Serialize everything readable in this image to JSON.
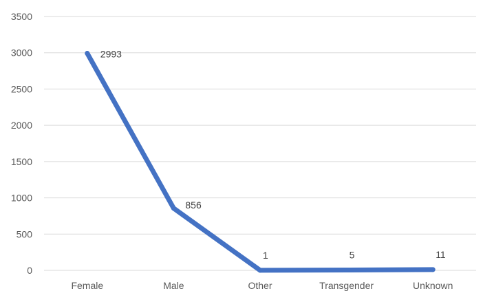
{
  "chart_data": {
    "type": "line",
    "categories": [
      "Female",
      "Male",
      "Other",
      "Transgender",
      "Unknown"
    ],
    "values": [
      2993,
      856,
      1,
      5,
      11
    ],
    "data_labels": [
      "2993",
      "856",
      "1",
      "5",
      "11"
    ],
    "title": "",
    "xlabel": "",
    "ylabel": "",
    "ylim": [
      0,
      3500
    ],
    "yticks": [
      0,
      500,
      1000,
      1500,
      2000,
      2500,
      3000,
      3500
    ],
    "ytick_labels": [
      "0",
      "500",
      "1000",
      "1500",
      "2000",
      "2500",
      "3000",
      "3500"
    ],
    "grid": true,
    "legend": "none",
    "colors": {
      "line": "#4472C4",
      "grid": "#D9D9D9",
      "text": "#595959"
    }
  }
}
